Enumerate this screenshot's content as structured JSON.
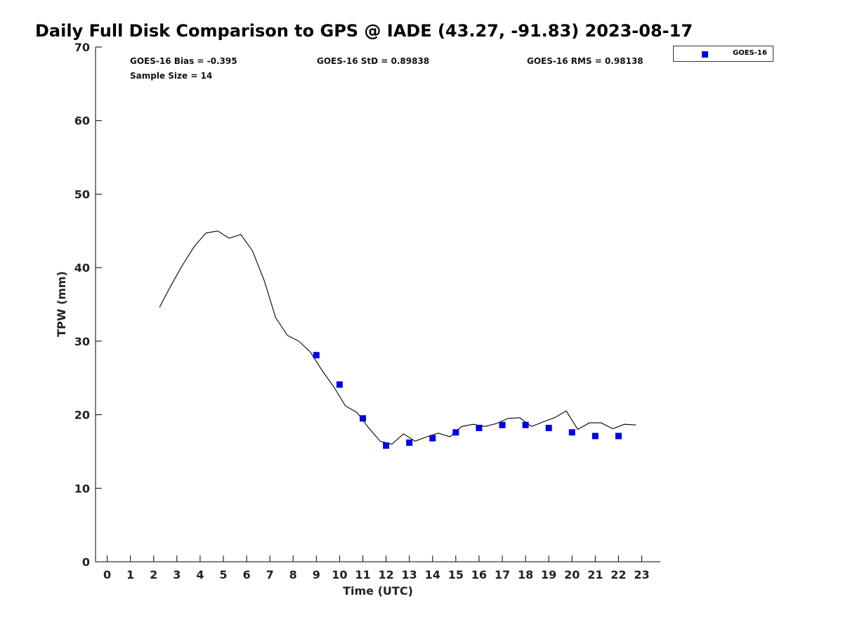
{
  "title": "Daily Full Disk Comparison to GPS @ IADE (43.27, -91.83) 2023-08-17",
  "stats": {
    "bias": "GOES-16 Bias = -0.395",
    "std": "GOES-16 StD = 0.89838",
    "rms": "GOES-16 RMS = 0.98138",
    "sample": "Sample Size = 14"
  },
  "legend": {
    "label": "GOES-16",
    "color": "#0000e6"
  },
  "chart_data": {
    "type": "line",
    "title": "Daily Full Disk Comparison to GPS @ IADE (43.27, -91.83) 2023-08-17",
    "xlabel": "Time (UTC)",
    "ylabel": "TPW (mm)",
    "xlim": [
      -0.5,
      23.8
    ],
    "ylim": [
      0,
      70
    ],
    "xticks": [
      0,
      1,
      2,
      3,
      4,
      5,
      6,
      7,
      8,
      9,
      10,
      11,
      12,
      13,
      14,
      15,
      16,
      17,
      18,
      19,
      20,
      21,
      22,
      23
    ],
    "yticks": [
      0,
      10,
      20,
      30,
      40,
      50,
      60,
      70
    ],
    "grid": false,
    "legend_position": "top-right",
    "series": [
      {
        "type": "line",
        "color": "#000000",
        "x": [
          2.25,
          2.75,
          3.25,
          3.75,
          4.25,
          4.75,
          5.25,
          5.75,
          6.25,
          6.75,
          7.25,
          7.75,
          8.25,
          8.75,
          9.25,
          9.75,
          10.25,
          10.75,
          11.25,
          11.75,
          12.25,
          12.75,
          13.25,
          13.75,
          14.25,
          14.75,
          15.25,
          15.75,
          16.25,
          16.75,
          17.25,
          17.75,
          18.25,
          18.75,
          19.25,
          19.75,
          20.25,
          20.75,
          21.25,
          21.75,
          22.25,
          22.75
        ],
        "y": [
          34.6,
          37.6,
          40.4,
          42.9,
          44.7,
          45.0,
          44.0,
          44.5,
          42.3,
          38.3,
          33.2,
          30.8,
          30.0,
          28.5,
          26.0,
          23.8,
          21.2,
          20.3,
          18.2,
          16.4,
          16.0,
          17.4,
          16.4,
          17.0,
          17.5,
          17.0,
          18.4,
          18.7,
          18.4,
          18.8,
          19.5,
          19.6,
          18.4,
          19.0,
          19.6,
          20.5,
          18.0,
          18.9,
          18.9,
          18.1,
          18.7,
          18.6
        ]
      },
      {
        "name": "GOES-16",
        "type": "scatter",
        "marker": "square",
        "color": "#0000e6",
        "x": [
          9,
          10,
          11,
          12,
          13,
          14,
          15,
          16,
          17,
          18,
          19,
          20,
          21,
          22
        ],
        "y": [
          28.1,
          24.1,
          19.5,
          15.8,
          16.2,
          16.8,
          17.6,
          18.2,
          18.6,
          18.6,
          18.2,
          17.6,
          17.1,
          17.1
        ]
      }
    ]
  }
}
